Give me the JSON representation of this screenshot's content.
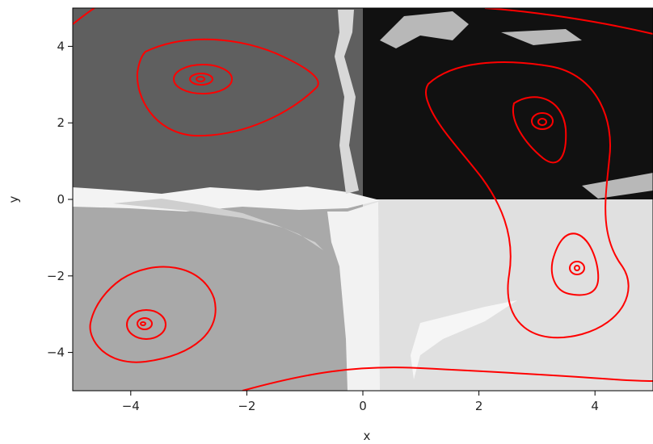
{
  "chart_data": {
    "type": "heatmap",
    "title": "",
    "xlabel": "x",
    "ylabel": "y",
    "xlim": [
      -5,
      5
    ],
    "ylim": [
      -5,
      5
    ],
    "grid": false,
    "xticks": [
      {
        "value": -4,
        "label": "−4"
      },
      {
        "value": -2,
        "label": "−2"
      },
      {
        "value": 0,
        "label": "0"
      },
      {
        "value": 2,
        "label": "2"
      },
      {
        "value": 4,
        "label": "4"
      }
    ],
    "yticks": [
      {
        "value": -4,
        "label": "−4"
      },
      {
        "value": -2,
        "label": "−2"
      },
      {
        "value": 0,
        "label": "0"
      },
      {
        "value": 2,
        "label": "2"
      },
      {
        "value": 4,
        "label": "4"
      }
    ],
    "background_regions": [
      {
        "name": "upper-left",
        "x": [
          -5,
          0
        ],
        "y": [
          0,
          5
        ],
        "color": "#5f5f5f"
      },
      {
        "name": "upper-right",
        "x": [
          0,
          5
        ],
        "y": [
          0,
          5
        ],
        "color": "#111111"
      },
      {
        "name": "lower-left",
        "x": [
          -5,
          0
        ],
        "y": [
          -5,
          0
        ],
        "color": "#a9a9a9"
      },
      {
        "name": "lower-right",
        "x": [
          0,
          5
        ],
        "y": [
          -5,
          0
        ],
        "color": "#e0e0e0"
      }
    ],
    "contour_color": "#ff0000",
    "contour_centers": [
      {
        "x": -2.8,
        "y": 3.15
      },
      {
        "x": 3.0,
        "y": 2.0
      },
      {
        "x": -3.8,
        "y": -3.25
      },
      {
        "x": 3.6,
        "y": -1.85
      }
    ]
  }
}
